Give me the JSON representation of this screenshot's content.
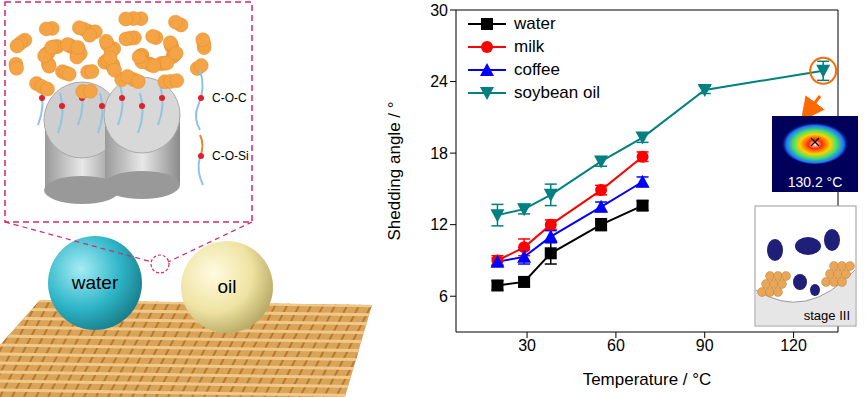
{
  "chart_data": {
    "type": "line",
    "x_label": "Temperature / °C",
    "y_label": "Shedding angle / °",
    "xlim": [
      6,
      135
    ],
    "xticks": [
      30,
      60,
      90,
      120
    ],
    "ylim": [
      3,
      30
    ],
    "yticks": [
      6,
      12,
      18,
      24,
      30
    ],
    "legend": "upper left",
    "annotations": [
      "130.2 °C",
      "stage III"
    ],
    "series": [
      {
        "name": "water",
        "color": "#000000",
        "marker": "square",
        "x": [
          20,
          29,
          38,
          55,
          69
        ],
        "values": [
          6.9,
          7.2,
          9.6,
          12.0,
          13.6
        ],
        "errors": [
          0.4,
          0.4,
          0.9,
          0.5,
          0.4
        ]
      },
      {
        "name": "milk",
        "color": "#ff0000",
        "marker": "circle",
        "x": [
          20,
          29,
          38,
          55,
          69
        ],
        "values": [
          9.0,
          10.1,
          12.0,
          14.9,
          17.7
        ],
        "errors": [
          0.4,
          0.7,
          0.4,
          0.4,
          0.4
        ]
      },
      {
        "name": "coffee",
        "color": "#0000ff",
        "marker": "triangle",
        "x": [
          20,
          29,
          38,
          55,
          69
        ],
        "values": [
          8.9,
          9.3,
          11.0,
          13.5,
          15.6
        ],
        "errors": [
          0.3,
          0.6,
          0.5,
          0.4,
          0.4
        ]
      },
      {
        "name": "soybean oil",
        "color": "#008080",
        "marker": "triangle_down",
        "x": [
          20,
          29,
          38,
          55,
          69,
          90,
          130
        ],
        "values": [
          12.8,
          13.3,
          14.5,
          17.3,
          19.3,
          23.3,
          24.9
        ],
        "errors": [
          0.9,
          0.4,
          0.9,
          0.4,
          0.4,
          0.3,
          0.8
        ]
      }
    ]
  },
  "diagram": {
    "droplets": [
      "water",
      "oil"
    ],
    "bonds": [
      "C-O-C",
      "C-O-Si"
    ]
  }
}
